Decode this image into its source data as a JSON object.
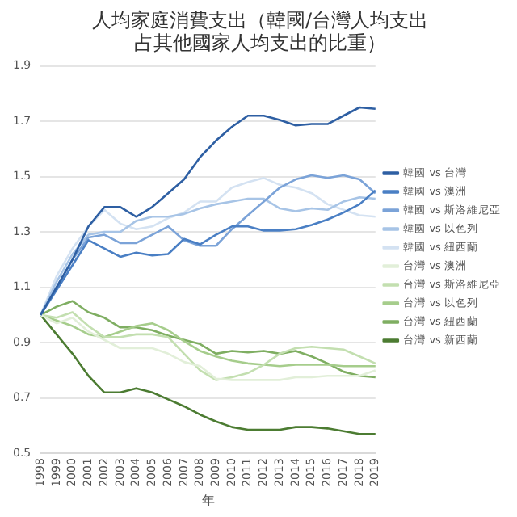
{
  "chart_data": {
    "type": "line",
    "title": "人均家庭消費支出（韓國/台灣人均支出占其他國家人均支出的比重）",
    "xlabel": "年",
    "categories": [
      "1998",
      "1999",
      "2000",
      "2001",
      "2002",
      "2003",
      "2004",
      "2005",
      "2006",
      "2007",
      "2008",
      "2009",
      "2010",
      "2011",
      "2012",
      "2013",
      "2014",
      "2015",
      "2016",
      "2017",
      "2018",
      "2019"
    ],
    "ylim": [
      0.5,
      1.9
    ],
    "yticks": [
      0.5,
      0.7,
      0.9,
      1.1,
      1.3,
      1.5,
      1.7,
      1.9
    ],
    "grid": "y",
    "legend": "right",
    "marker": "none",
    "series": [
      {
        "name": "韓國 vs 台灣",
        "color": "#2e5fa3",
        "values": [
          1.0,
          1.1,
          1.2,
          1.32,
          1.39,
          1.39,
          1.355,
          1.39,
          1.44,
          1.49,
          1.57,
          1.63,
          1.68,
          1.72,
          1.72,
          1.705,
          1.685,
          1.69,
          1.69,
          1.72,
          1.75,
          1.745
        ]
      },
      {
        "name": "韓國 vs 澳洲",
        "color": "#4a7fc4",
        "values": [
          1.0,
          1.09,
          1.18,
          1.27,
          1.24,
          1.21,
          1.225,
          1.215,
          1.22,
          1.275,
          1.255,
          1.29,
          1.32,
          1.32,
          1.305,
          1.305,
          1.31,
          1.325,
          1.345,
          1.37,
          1.4,
          1.45
        ]
      },
      {
        "name": "韓國 vs 斯洛維尼亞",
        "color": "#7ba3d8",
        "values": [
          1.0,
          1.1,
          1.2,
          1.28,
          1.29,
          1.26,
          1.26,
          1.29,
          1.32,
          1.27,
          1.25,
          1.25,
          1.31,
          1.36,
          1.41,
          1.46,
          1.49,
          1.505,
          1.495,
          1.505,
          1.49,
          1.44
        ]
      },
      {
        "name": "韓國 vs 以色列",
        "color": "#a7c4e6",
        "values": [
          1.0,
          1.12,
          1.22,
          1.29,
          1.3,
          1.3,
          1.34,
          1.355,
          1.355,
          1.365,
          1.385,
          1.4,
          1.41,
          1.42,
          1.42,
          1.385,
          1.375,
          1.385,
          1.38,
          1.41,
          1.425,
          1.42
        ]
      },
      {
        "name": "韓國 vs 紐西蘭",
        "color": "#d4e2f2",
        "values": [
          1.0,
          1.14,
          1.24,
          1.32,
          1.38,
          1.33,
          1.31,
          1.32,
          1.35,
          1.37,
          1.41,
          1.41,
          1.46,
          1.48,
          1.495,
          1.47,
          1.46,
          1.44,
          1.4,
          1.38,
          1.36,
          1.355
        ]
      },
      {
        "name": "台灣 vs 澳洲",
        "color": "#e2efd9",
        "values": [
          1.0,
          0.97,
          0.99,
          0.94,
          0.91,
          0.88,
          0.88,
          0.88,
          0.86,
          0.83,
          0.815,
          0.77,
          0.765,
          0.765,
          0.765,
          0.765,
          0.775,
          0.775,
          0.78,
          0.78,
          0.78,
          0.8
        ]
      },
      {
        "name": "台灣 vs 斯洛維尼亞",
        "color": "#c3dfb0",
        "values": [
          1.0,
          0.99,
          1.01,
          0.96,
          0.92,
          0.92,
          0.93,
          0.93,
          0.92,
          0.86,
          0.8,
          0.765,
          0.775,
          0.79,
          0.82,
          0.86,
          0.88,
          0.885,
          0.88,
          0.875,
          0.85,
          0.825
        ]
      },
      {
        "name": "台灣 vs 以色列",
        "color": "#a6cd8c",
        "values": [
          1.0,
          0.98,
          0.96,
          0.93,
          0.92,
          0.94,
          0.96,
          0.97,
          0.945,
          0.905,
          0.87,
          0.85,
          0.835,
          0.825,
          0.82,
          0.815,
          0.82,
          0.82,
          0.82,
          0.815,
          0.815,
          0.815
        ]
      },
      {
        "name": "台灣 vs 紐西蘭",
        "color": "#7fae62",
        "values": [
          1.0,
          1.03,
          1.05,
          1.01,
          0.99,
          0.955,
          0.955,
          0.945,
          0.925,
          0.91,
          0.895,
          0.86,
          0.87,
          0.865,
          0.87,
          0.86,
          0.87,
          0.85,
          0.825,
          0.795,
          0.78,
          0.775
        ]
      },
      {
        "name": "台灣 vs 新西蘭",
        "color": "#4c7c32",
        "values": [
          1.0,
          0.93,
          0.86,
          0.78,
          0.72,
          0.72,
          0.735,
          0.72,
          0.695,
          0.67,
          0.64,
          0.615,
          0.595,
          0.585,
          0.585,
          0.585,
          0.595,
          0.595,
          0.59,
          0.58,
          0.57,
          0.57
        ]
      }
    ]
  }
}
